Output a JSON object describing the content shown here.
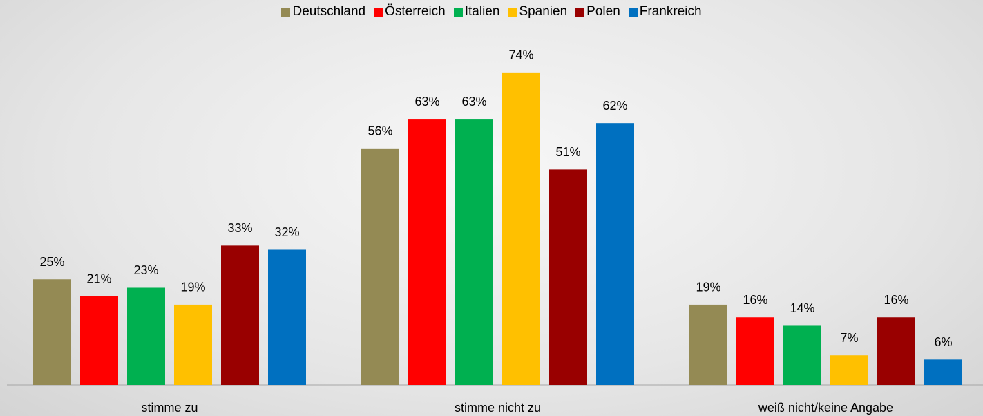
{
  "chart_data": {
    "type": "bar",
    "categories": [
      "stimme zu",
      "stimme nicht zu",
      "weiß nicht/keine Angabe"
    ],
    "series": [
      {
        "name": "Deutschland",
        "color": "#948a54",
        "values": [
          25,
          56,
          19
        ],
        "value_labels": [
          "25%",
          "56%",
          "19%"
        ]
      },
      {
        "name": "Österreich",
        "color": "#ff0000",
        "values": [
          21,
          63,
          16
        ],
        "value_labels": [
          "21%",
          "63%",
          "16%"
        ]
      },
      {
        "name": "Italien",
        "color": "#00b050",
        "values": [
          23,
          63,
          14
        ],
        "value_labels": [
          "23%",
          "63%",
          "14%"
        ]
      },
      {
        "name": "Spanien",
        "color": "#ffc000",
        "values": [
          19,
          74,
          7
        ],
        "value_labels": [
          "19%",
          "74%",
          "7%"
        ]
      },
      {
        "name": "Polen",
        "color": "#990000",
        "values": [
          33,
          51,
          16
        ],
        "value_labels": [
          "33%",
          "51%",
          "16%"
        ]
      },
      {
        "name": "Frankreich",
        "color": "#0070c0",
        "values": [
          32,
          62,
          6
        ],
        "value_labels": [
          "32%",
          "62%",
          "6%"
        ]
      }
    ],
    "legend": "top"
  }
}
